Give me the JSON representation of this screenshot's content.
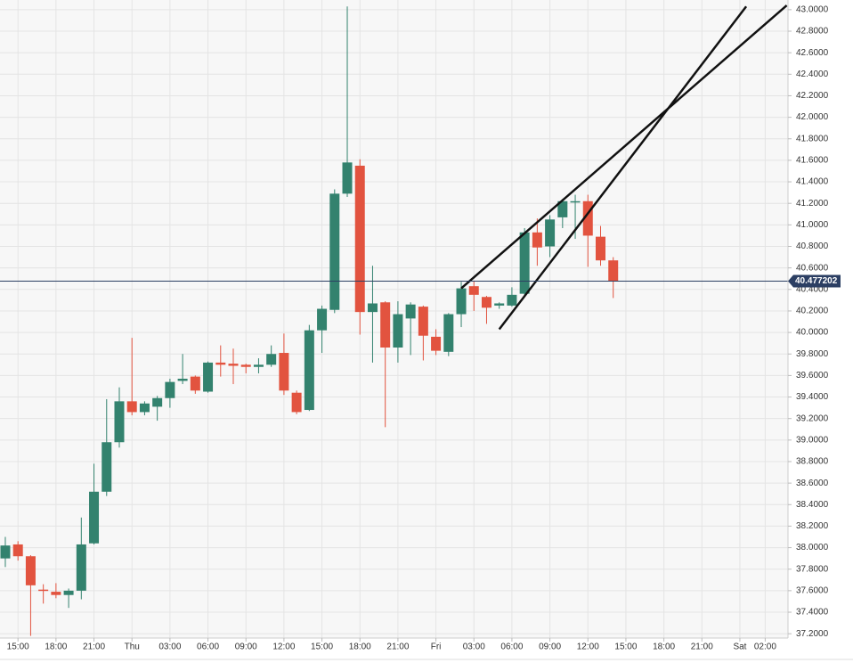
{
  "chart_data": {
    "type": "candlestick",
    "x": [
      14,
      15,
      16,
      17,
      18,
      19,
      20,
      21,
      22,
      23,
      24,
      25,
      26,
      27,
      28,
      29,
      30,
      31,
      32,
      33,
      34,
      35,
      36,
      37,
      38,
      39,
      40,
      41,
      42,
      43,
      44,
      45,
      46,
      47,
      48,
      49,
      50,
      51,
      52,
      53,
      54,
      55,
      56,
      57,
      58,
      59,
      60,
      61,
      62
    ],
    "open": [
      37.9,
      38.03,
      37.92,
      37.61,
      37.59,
      37.56,
      37.6,
      38.04,
      38.52,
      38.98,
      39.36,
      39.26,
      39.31,
      39.39,
      39.55,
      39.59,
      39.45,
      39.72,
      39.71,
      39.7,
      39.68,
      39.7,
      39.81,
      39.44,
      39.28,
      40.02,
      40.21,
      41.29,
      41.55,
      40.19,
      40.28,
      39.86,
      40.13,
      40.24,
      39.96,
      39.82,
      40.17,
      40.43,
      40.33,
      40.25,
      40.25,
      40.36,
      40.93,
      40.8,
      41.07,
      41.21,
      41.22,
      40.89,
      40.67
    ],
    "high": [
      38.1,
      38.06,
      37.93,
      37.66,
      37.67,
      37.62,
      38.28,
      38.78,
      39.38,
      39.49,
      39.95,
      39.36,
      39.41,
      39.57,
      39.8,
      39.6,
      39.73,
      39.88,
      39.85,
      39.71,
      39.76,
      39.88,
      39.99,
      39.46,
      40.07,
      40.25,
      41.33,
      43.03,
      41.61,
      40.62,
      40.29,
      40.29,
      40.28,
      40.25,
      40.03,
      40.18,
      40.47,
      40.48,
      40.34,
      40.28,
      40.42,
      40.97,
      41.06,
      41.09,
      41.24,
      41.28,
      41.28,
      40.99,
      40.7
    ],
    "low": [
      37.82,
      37.88,
      37.18,
      37.48,
      37.53,
      37.44,
      37.52,
      38.03,
      38.48,
      38.93,
      39.23,
      39.23,
      39.18,
      39.3,
      39.52,
      39.43,
      39.44,
      39.59,
      39.52,
      39.62,
      39.62,
      39.68,
      39.42,
      39.24,
      39.27,
      39.81,
      40.18,
      41.26,
      39.98,
      39.72,
      39.12,
      39.72,
      39.79,
      39.74,
      39.79,
      39.78,
      40.05,
      40.2,
      40.08,
      40.22,
      40.24,
      40.34,
      40.62,
      40.7,
      40.97,
      40.87,
      40.61,
      40.62,
      40.32
    ],
    "close": [
      38.02,
      37.92,
      37.65,
      37.6,
      37.56,
      37.6,
      38.03,
      38.52,
      38.98,
      39.36,
      39.26,
      39.34,
      39.39,
      39.54,
      39.57,
      39.46,
      39.72,
      39.7,
      39.69,
      39.68,
      39.7,
      39.8,
      39.46,
      39.26,
      40.02,
      40.22,
      41.29,
      41.58,
      40.19,
      40.27,
      39.86,
      40.17,
      40.26,
      39.97,
      39.83,
      40.17,
      40.41,
      40.35,
      40.23,
      40.27,
      40.35,
      40.93,
      40.79,
      41.05,
      41.22,
      41.22,
      40.9,
      40.67,
      40.48
    ],
    "up_color": "#33826e",
    "down_color": "#e2533f",
    "price_line": {
      "value": 40.477202,
      "color": "#2c3f63"
    },
    "trendlines": [
      {
        "x": [
          50,
          75.7
        ],
        "y": [
          40.41,
          43.04
        ]
      },
      {
        "x": [
          53,
          72.5
        ],
        "y": [
          40.03,
          43.03
        ]
      }
    ],
    "trendline_color": "#111111",
    "xlim": [
      13.58,
      75.8
    ],
    "ylim": [
      37.16,
      43.09
    ],
    "grid": true,
    "xticks": [
      {
        "value": 15,
        "label": "15:00"
      },
      {
        "value": 18,
        "label": "18:00"
      },
      {
        "value": 21,
        "label": "21:00"
      },
      {
        "value": 24,
        "label": "Thu"
      },
      {
        "value": 27,
        "label": "03:00"
      },
      {
        "value": 30,
        "label": "06:00"
      },
      {
        "value": 33,
        "label": "09:00"
      },
      {
        "value": 36,
        "label": "12:00"
      },
      {
        "value": 39,
        "label": "15:00"
      },
      {
        "value": 42,
        "label": "18:00"
      },
      {
        "value": 45,
        "label": "21:00"
      },
      {
        "value": 48,
        "label": "Fri"
      },
      {
        "value": 51,
        "label": "03:00"
      },
      {
        "value": 54,
        "label": "06:00"
      },
      {
        "value": 57,
        "label": "09:00"
      },
      {
        "value": 60,
        "label": "12:00"
      },
      {
        "value": 63,
        "label": "15:00"
      },
      {
        "value": 66,
        "label": "18:00"
      },
      {
        "value": 69,
        "label": "21:00"
      },
      {
        "value": 72,
        "label": "Sat"
      },
      {
        "value": 74,
        "label": "02:00"
      }
    ],
    "yticks": [
      {
        "value": 37.2,
        "label": "37.2000"
      },
      {
        "value": 37.4,
        "label": "37.4000"
      },
      {
        "value": 37.6,
        "label": "37.6000"
      },
      {
        "value": 37.8,
        "label": "37.8000"
      },
      {
        "value": 38.0,
        "label": "38.0000"
      },
      {
        "value": 38.2,
        "label": "38.2000"
      },
      {
        "value": 38.4,
        "label": "38.4000"
      },
      {
        "value": 38.6,
        "label": "38.6000"
      },
      {
        "value": 38.8,
        "label": "38.8000"
      },
      {
        "value": 39.0,
        "label": "39.0000"
      },
      {
        "value": 39.2,
        "label": "39.2000"
      },
      {
        "value": 39.4,
        "label": "39.4000"
      },
      {
        "value": 39.6,
        "label": "39.6000"
      },
      {
        "value": 39.8,
        "label": "39.8000"
      },
      {
        "value": 40.0,
        "label": "40.0000"
      },
      {
        "value": 40.2,
        "label": "40.2000"
      },
      {
        "value": 40.4,
        "label": "40.4000"
      },
      {
        "value": 40.6,
        "label": "40.6000"
      },
      {
        "value": 40.8,
        "label": "40.8000"
      },
      {
        "value": 41.0,
        "label": "41.0000"
      },
      {
        "value": 41.2,
        "label": "41.2000"
      },
      {
        "value": 41.4,
        "label": "41.4000"
      },
      {
        "value": 41.6,
        "label": "41.6000"
      },
      {
        "value": 41.8,
        "label": "41.8000"
      },
      {
        "value": 42.0,
        "label": "42.0000"
      },
      {
        "value": 42.2,
        "label": "42.2000"
      },
      {
        "value": 42.4,
        "label": "42.4000"
      },
      {
        "value": 42.6,
        "label": "42.6000"
      },
      {
        "value": 42.8,
        "label": "42.8000"
      },
      {
        "value": 43.0,
        "label": "43.0000"
      }
    ]
  }
}
